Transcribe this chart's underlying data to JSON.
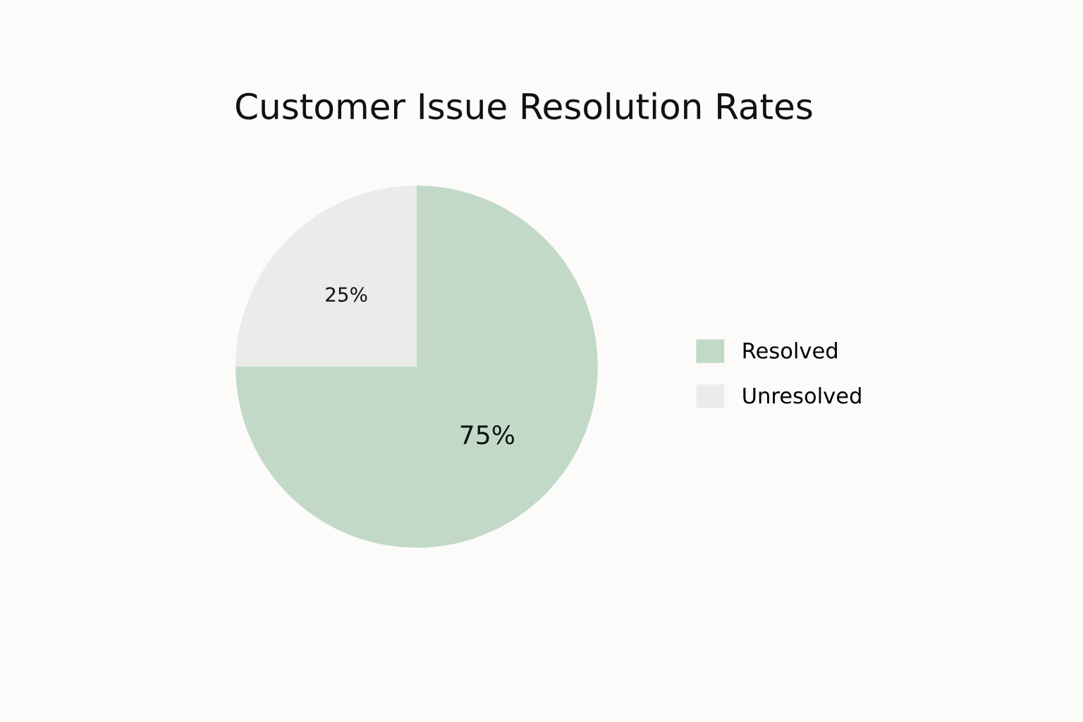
{
  "chart_data": {
    "type": "pie",
    "title": "Customer Issue Resolution Rates",
    "categories": [
      "Resolved",
      "Unresolved"
    ],
    "values": [
      75,
      25
    ],
    "colors": [
      "#c2d9c8",
      "#ebebea"
    ],
    "value_labels": [
      "75%",
      "25%"
    ],
    "legend": "right"
  }
}
